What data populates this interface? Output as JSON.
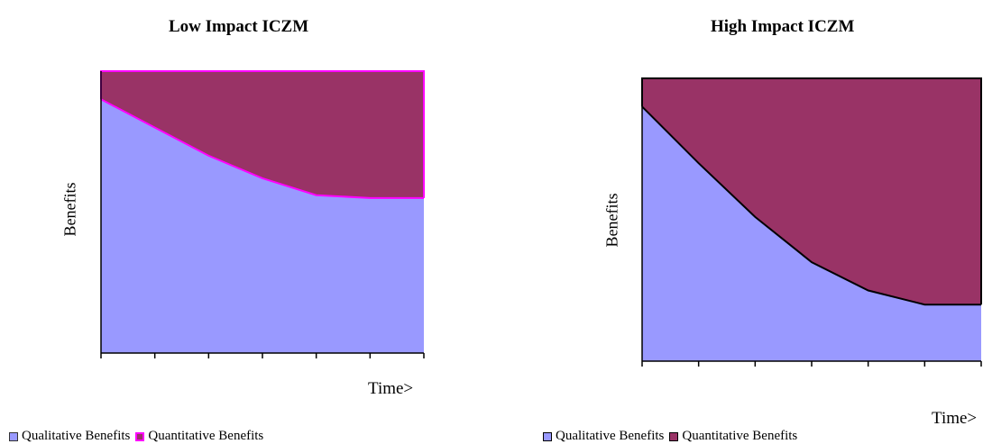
{
  "chart_data": [
    {
      "type": "area",
      "title": "Low Impact ICZM",
      "ylabel": "Benefits",
      "xlabel": "Time>",
      "x": [
        0,
        1,
        2,
        3,
        4,
        5,
        6
      ],
      "ylim": [
        0,
        100
      ],
      "stacked": true,
      "grid": false,
      "legend_position": "bottom",
      "series": [
        {
          "name": "Qualitative Benefits",
          "color": "#9999FF",
          "values": [
            90,
            80,
            70,
            62,
            56,
            55,
            55
          ]
        },
        {
          "name": "Quantitative Benefits",
          "color": "#993366",
          "values": [
            10,
            20,
            30,
            38,
            44,
            45,
            45
          ]
        }
      ],
      "outline_color": "#FF00FF"
    },
    {
      "type": "area",
      "title": "High Impact ICZM",
      "ylabel": "Benefits",
      "xlabel": "Time>",
      "x": [
        0,
        1,
        2,
        3,
        4,
        5,
        6
      ],
      "ylim": [
        0,
        100
      ],
      "stacked": true,
      "grid": false,
      "legend_position": "bottom",
      "series": [
        {
          "name": "Qualitative Benefits",
          "color": "#9999FF",
          "values": [
            90,
            70,
            51,
            35,
            25,
            20,
            20
          ]
        },
        {
          "name": "Quantitative Benefits",
          "color": "#993366",
          "values": [
            10,
            30,
            49,
            65,
            75,
            80,
            80
          ]
        }
      ],
      "outline_color": "#000000"
    }
  ]
}
